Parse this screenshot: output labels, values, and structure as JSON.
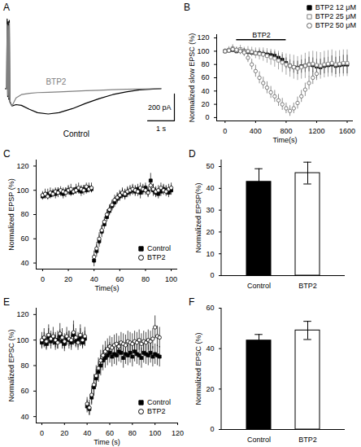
{
  "chart_data": [
    {
      "panel": "A",
      "type": "line",
      "tick_labels": false,
      "xlim": [
        0,
        6.3
      ],
      "ylim": [
        -400,
        550
      ],
      "x": [
        0,
        0.05,
        0.07,
        0.09,
        0.11,
        0.13,
        0.15,
        0.17,
        0.25,
        0.4,
        0.6,
        0.9,
        1.2,
        1.6,
        2.0,
        2.5,
        3.0,
        3.5,
        4.0,
        4.5,
        5.0,
        5.5,
        5.8
      ],
      "series": [
        {
          "name": "Control",
          "color": "#000000",
          "values": [
            0,
            0,
            520,
            -60,
            500,
            -80,
            510,
            -100,
            -130,
            -120,
            -125,
            -155,
            -180,
            -190,
            -180,
            -150,
            -110,
            -75,
            -45,
            -25,
            -10,
            -3,
            0
          ]
        },
        {
          "name": "BTP2",
          "color": "#808080",
          "values": [
            0,
            0,
            480,
            -50,
            470,
            -70,
            490,
            -90,
            -130,
            -70,
            -45,
            -35,
            -30,
            -28,
            -25,
            -20,
            -15,
            -12,
            -8,
            -5,
            -3,
            -1,
            0
          ]
        }
      ],
      "scale_bars": {
        "y": {
          "value": 200,
          "label": "200 pA"
        },
        "x": {
          "value": 1,
          "label": "1 s"
        }
      }
    },
    {
      "panel": "B",
      "type": "scatter",
      "xlabel": "Time(s)",
      "ylabel": "Normalized slow EPSC (%)",
      "xlim": [
        -110,
        1680
      ],
      "xticks": [
        0,
        400,
        800,
        1200,
        1600
      ],
      "ylim": [
        -5,
        125
      ],
      "yticks": [
        0,
        20,
        40,
        60,
        80,
        100,
        120
      ],
      "legend": "top-right",
      "drug_application": {
        "label": "BTP2",
        "start": 150,
        "end": 800
      },
      "series": [
        {
          "name": "BTP2 12 μM",
          "color": "#000000",
          "marker": "square",
          "x": [
            0,
            50,
            100,
            150,
            200,
            250,
            300,
            350,
            400,
            450,
            500,
            550,
            600,
            650,
            700,
            750,
            800,
            850,
            900,
            950,
            1000,
            1050,
            1100,
            1150,
            1200,
            1250,
            1300,
            1350,
            1400,
            1450,
            1500,
            1550,
            1600
          ],
          "values": [
            100,
            101,
            102,
            100,
            101,
            100,
            99,
            98,
            97,
            97,
            96,
            95,
            94,
            93,
            90,
            87,
            82,
            78,
            76,
            75,
            77,
            78,
            80,
            79,
            77,
            76,
            78,
            79,
            80,
            78,
            79,
            80,
            80
          ],
          "errors": [
            3,
            3,
            4,
            3,
            3,
            4,
            4,
            4,
            4,
            5,
            5,
            5,
            6,
            6,
            7,
            8,
            8,
            9,
            9,
            10,
            10,
            10,
            11,
            11,
            11,
            12,
            12,
            12,
            13,
            13,
            13,
            14,
            14
          ]
        },
        {
          "name": "BTP2 25 μM",
          "color": "#808080",
          "marker": "square-open",
          "x": [
            0,
            50,
            100,
            150,
            200,
            250,
            300,
            350,
            400,
            450,
            500,
            550,
            600,
            650,
            700,
            750,
            800,
            850,
            900,
            950,
            1000,
            1050,
            1100,
            1150,
            1200,
            1250,
            1300,
            1350,
            1400,
            1450,
            1500,
            1550,
            1600
          ],
          "values": [
            100,
            102,
            104,
            101,
            103,
            100,
            100,
            99,
            97,
            96,
            95,
            93,
            91,
            89,
            86,
            83,
            80,
            78,
            76,
            74,
            76,
            78,
            80,
            81,
            79,
            78,
            80,
            81,
            82,
            80,
            81,
            82,
            82
          ],
          "errors": [
            4,
            5,
            6,
            5,
            6,
            6,
            7,
            7,
            8,
            9,
            10,
            11,
            12,
            13,
            14,
            15,
            16,
            17,
            18,
            18,
            18,
            19,
            19,
            19,
            20,
            20,
            20,
            20,
            20,
            20,
            20,
            20,
            20
          ]
        },
        {
          "name": "BTP2 50 μM",
          "color": "#606060",
          "marker": "circle-open",
          "x": [
            0,
            50,
            100,
            150,
            200,
            250,
            300,
            350,
            400,
            450,
            500,
            550,
            600,
            650,
            700,
            750,
            800,
            850,
            900,
            950,
            1000,
            1050,
            1100,
            1150,
            1200
          ],
          "values": [
            100,
            101,
            103,
            102,
            100,
            98,
            90,
            80,
            70,
            60,
            52,
            45,
            38,
            32,
            26,
            20,
            14,
            10,
            14,
            22,
            32,
            42,
            52,
            60,
            66
          ],
          "errors": [
            3,
            4,
            5,
            4,
            5,
            6,
            7,
            8,
            9,
            9,
            9,
            9,
            9,
            9,
            9,
            9,
            8,
            8,
            8,
            9,
            9,
            10,
            10,
            10,
            10
          ]
        }
      ]
    },
    {
      "panel": "C",
      "type": "scatter",
      "xlabel": "Time(s)",
      "ylabel": "Normalized EPSP (%)",
      "xlim": [
        -5,
        105
      ],
      "xticks": [
        0,
        20,
        40,
        60,
        80,
        100
      ],
      "ylim": [
        35,
        125
      ],
      "yticks": [
        40,
        60,
        80,
        100,
        120
      ],
      "legend": "bottom-right",
      "x": [
        0,
        2,
        4,
        6,
        8,
        10,
        12,
        14,
        16,
        18,
        20,
        22,
        24,
        26,
        28,
        30,
        32,
        34,
        36,
        38,
        40,
        42,
        44,
        46,
        48,
        50,
        52,
        54,
        56,
        58,
        60,
        62,
        64,
        66,
        68,
        70,
        72,
        74,
        76,
        78,
        80,
        82,
        84,
        86,
        88,
        90,
        92,
        94,
        96,
        98,
        100
      ],
      "series": [
        {
          "name": "Control",
          "color": "#000000",
          "marker": "square",
          "values": [
            95,
            96,
            97,
            96,
            98,
            97,
            99,
            98,
            97,
            99,
            100,
            98,
            99,
            101,
            100,
            99,
            101,
            100,
            102,
            101,
            42,
            50,
            58,
            66,
            72,
            78,
            83,
            87,
            90,
            93,
            95,
            97,
            96,
            98,
            99,
            100,
            99,
            101,
            98,
            100,
            102,
            99,
            108,
            100,
            98,
            97,
            99,
            101,
            100,
            98,
            100
          ],
          "errors": [
            3,
            3,
            4,
            3,
            3,
            4,
            3,
            3,
            4,
            3,
            4,
            3,
            3,
            4,
            3,
            4,
            3,
            3,
            4,
            3,
            5,
            5,
            5,
            5,
            4,
            4,
            4,
            4,
            4,
            4,
            4,
            4,
            4,
            4,
            4,
            4,
            4,
            4,
            5,
            4,
            4,
            4,
            6,
            5,
            4,
            4,
            4,
            4,
            4,
            4,
            4
          ]
        },
        {
          "name": "BTP2",
          "color": "#000000",
          "marker": "circle-open",
          "values": [
            96,
            97,
            95,
            98,
            97,
            99,
            98,
            100,
            99,
            98,
            100,
            101,
            99,
            100,
            102,
            101,
            100,
            103,
            101,
            102,
            45,
            52,
            60,
            67,
            74,
            80,
            84,
            88,
            92,
            94,
            96,
            98,
            97,
            99,
            100,
            101,
            100,
            99,
            102,
            101,
            100,
            98,
            104,
            101,
            99,
            100,
            102,
            100,
            99,
            101,
            102
          ],
          "errors": [
            3,
            4,
            3,
            4,
            3,
            3,
            4,
            3,
            3,
            4,
            3,
            4,
            3,
            3,
            4,
            3,
            4,
            3,
            3,
            4,
            5,
            5,
            5,
            4,
            4,
            4,
            4,
            4,
            4,
            4,
            4,
            4,
            4,
            4,
            4,
            4,
            4,
            4,
            4,
            4,
            4,
            4,
            5,
            4,
            4,
            4,
            4,
            4,
            4,
            4,
            4
          ]
        }
      ]
    },
    {
      "panel": "D",
      "type": "bar",
      "ylabel": "Normalized EPSP(%)",
      "categories": [
        "Control",
        "BTP2"
      ],
      "values": [
        43,
        47
      ],
      "errors": [
        6,
        5
      ],
      "colors": [
        "#000000",
        "#ffffff"
      ],
      "ylim": [
        0,
        53
      ],
      "yticks": [
        0,
        10,
        20,
        30,
        40,
        50
      ]
    },
    {
      "panel": "E",
      "type": "scatter",
      "xlabel": "Time (s)",
      "ylabel": "Normalized EPSC (%)",
      "xlim": [
        -5,
        120
      ],
      "xticks": [
        0,
        20,
        40,
        60,
        80,
        100,
        120
      ],
      "ylim": [
        35,
        125
      ],
      "yticks": [
        40,
        60,
        80,
        100,
        120
      ],
      "legend": "bottom-right",
      "x": [
        0,
        2,
        4,
        6,
        8,
        10,
        12,
        14,
        16,
        18,
        20,
        22,
        24,
        26,
        28,
        30,
        32,
        34,
        36,
        38,
        40,
        42,
        44,
        46,
        48,
        50,
        52,
        54,
        56,
        58,
        60,
        62,
        64,
        66,
        68,
        70,
        72,
        74,
        76,
        78,
        80,
        82,
        84,
        86,
        88,
        90,
        92,
        94,
        96,
        98,
        100,
        102,
        104
      ],
      "series": [
        {
          "name": "Control",
          "color": "#000000",
          "marker": "square",
          "values": [
            98,
            100,
            97,
            102,
            99,
            101,
            98,
            100,
            103,
            99,
            97,
            101,
            100,
            98,
            104,
            99,
            100,
            102,
            98,
            101,
            48,
            46,
            55,
            63,
            70,
            75,
            80,
            84,
            86,
            88,
            90,
            87,
            89,
            88,
            91,
            90,
            86,
            89,
            88,
            90,
            87,
            91,
            89,
            88,
            86,
            90,
            89,
            88,
            90,
            87,
            89,
            88,
            87
          ],
          "errors": [
            5,
            6,
            5,
            7,
            6,
            5,
            6,
            7,
            5,
            6,
            6,
            5,
            7,
            6,
            8,
            5,
            6,
            7,
            5,
            6,
            5,
            5,
            6,
            7,
            7,
            8,
            8,
            8,
            8,
            8,
            8,
            8,
            8,
            8,
            8,
            8,
            8,
            8,
            8,
            8,
            8,
            8,
            8,
            8,
            8,
            8,
            8,
            8,
            8,
            8,
            8,
            8,
            8
          ]
        },
        {
          "name": "BTP2",
          "color": "#000000",
          "marker": "circle-open",
          "values": [
            100,
            102,
            99,
            104,
            101,
            103,
            100,
            98,
            105,
            102,
            99,
            103,
            101,
            100,
            106,
            102,
            98,
            104,
            100,
            103,
            50,
            47,
            57,
            65,
            72,
            78,
            84,
            88,
            91,
            93,
            95,
            94,
            96,
            97,
            95,
            98,
            97,
            96,
            99,
            98,
            97,
            99,
            98,
            100,
            97,
            99,
            98,
            100,
            99,
            101,
            110,
            103,
            102
          ],
          "errors": [
            6,
            7,
            6,
            8,
            6,
            7,
            6,
            5,
            8,
            7,
            6,
            7,
            6,
            6,
            9,
            7,
            6,
            8,
            6,
            7,
            5,
            6,
            7,
            8,
            8,
            8,
            8,
            8,
            8,
            8,
            8,
            8,
            8,
            8,
            8,
            8,
            8,
            8,
            8,
            8,
            8,
            8,
            8,
            8,
            8,
            8,
            8,
            8,
            8,
            8,
            9,
            8,
            8
          ]
        }
      ]
    },
    {
      "panel": "F",
      "type": "bar",
      "ylabel": "Normalized EPSC (%)",
      "categories": [
        "Control",
        "BTP2"
      ],
      "values": [
        44,
        49
      ],
      "errors": [
        3,
        4.5
      ],
      "colors": [
        "#000000",
        "#ffffff"
      ],
      "ylim": [
        0,
        60
      ],
      "yticks": [
        0,
        20,
        40,
        60
      ]
    }
  ]
}
